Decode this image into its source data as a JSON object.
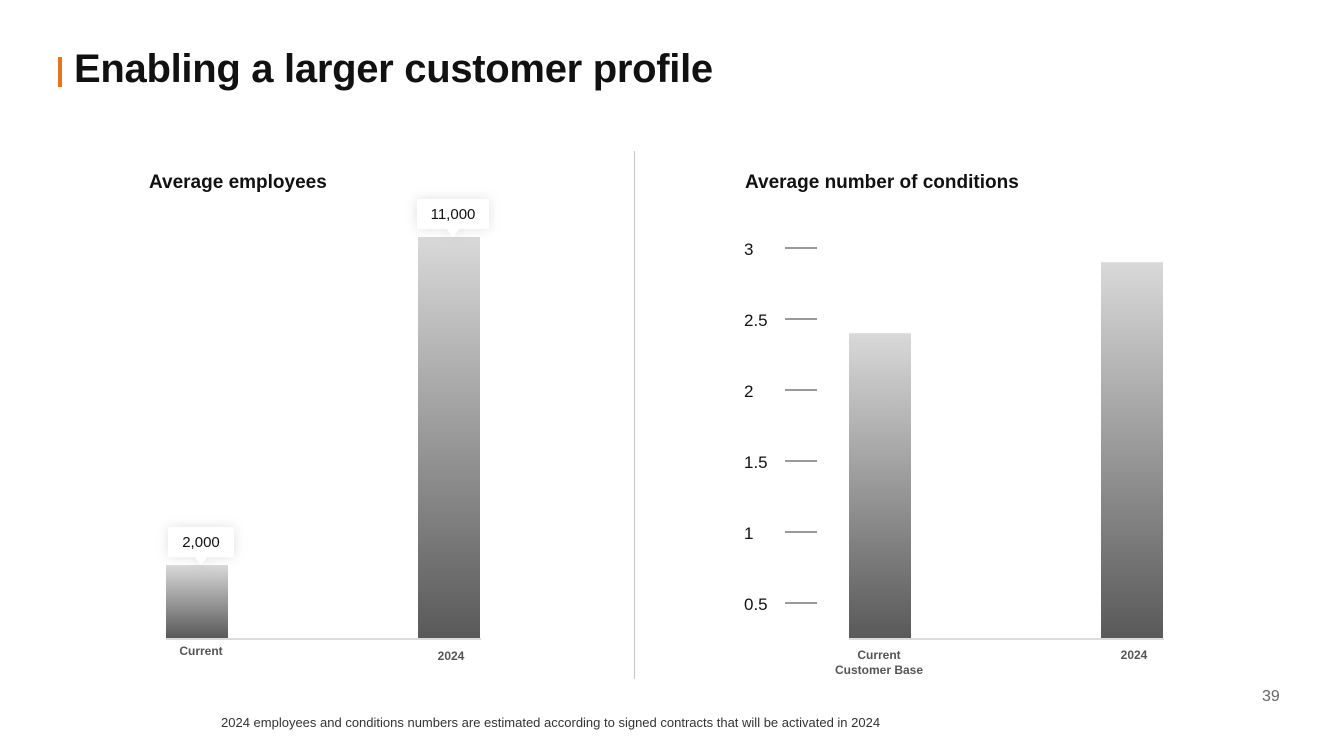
{
  "slide": {
    "title": "Enabling a larger customer profile",
    "page_number": "39",
    "footnote": "2024 employees and conditions numbers are estimated according to signed contracts that will be activated in 2024",
    "accent_color": "#e8731e"
  },
  "chart_data": [
    {
      "type": "bar",
      "title": "Average employees",
      "categories": [
        "Current",
        "2024"
      ],
      "values": [
        2000,
        11000
      ],
      "data_labels": [
        "2,000",
        "11,000"
      ],
      "ylim": [
        0,
        11000
      ],
      "axis_visible": false,
      "grid": false,
      "bar_gradient": [
        "#d9d9d9",
        "#595959"
      ]
    },
    {
      "type": "bar",
      "title": "Average number of conditions",
      "categories": [
        "Current\nCustomer Base",
        "2024"
      ],
      "values": [
        2.4,
        2.9
      ],
      "yticks": [
        0.5,
        1,
        1.5,
        2,
        2.5,
        3
      ],
      "ytick_labels": [
        "0.5",
        "1",
        "1.5",
        "2",
        "2.5",
        "3"
      ],
      "ylim": [
        0.3,
        3
      ],
      "grid": false,
      "bar_gradient": [
        "#d9d9d9",
        "#595959"
      ]
    }
  ]
}
